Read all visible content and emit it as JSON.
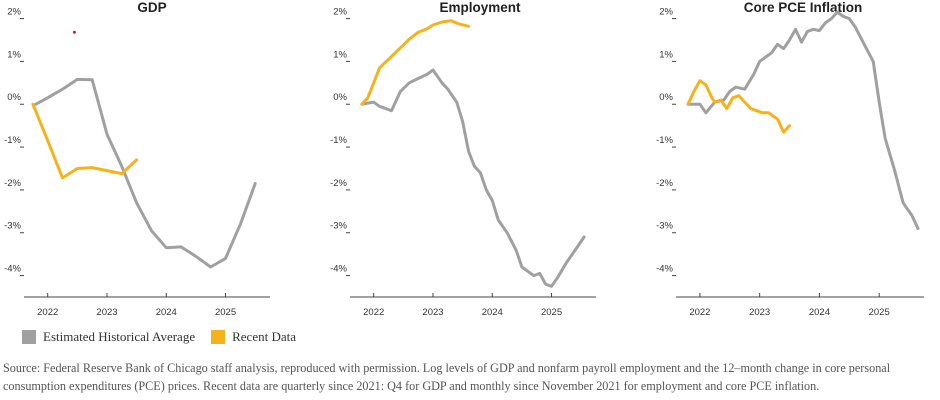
{
  "chart_data": [
    {
      "type": "line",
      "title": "GDP",
      "x_ticks": [
        "2022",
        "2023",
        "2024",
        "2025"
      ],
      "y_tick_labels": [
        "2%",
        "1%",
        "0%",
        "-1%",
        "-2%",
        "-3%",
        "-4%"
      ],
      "ylim": [
        -4.5,
        2.2
      ],
      "xlim": [
        2021.6,
        2025.75
      ],
      "series": [
        {
          "name": "Estimated Historical Average",
          "color": "#a0a0a0",
          "x": [
            2021.8,
            2022.0,
            2022.25,
            2022.5,
            2022.75,
            2023.0,
            2023.25,
            2023.5,
            2023.75,
            2024.0,
            2024.25,
            2024.5,
            2024.75,
            2025.0,
            2025.25,
            2025.5
          ],
          "y": [
            0.0,
            0.15,
            0.35,
            0.58,
            0.57,
            -0.7,
            -1.45,
            -2.3,
            -2.95,
            -3.35,
            -3.33,
            -3.55,
            -3.8,
            -3.6,
            -2.8,
            -1.85
          ]
        },
        {
          "name": "Recent Data",
          "color": "#f6b21b",
          "x": [
            2021.75,
            2022.0,
            2022.25,
            2022.5,
            2022.75,
            2023.0,
            2023.25,
            2023.5
          ],
          "y": [
            0.0,
            -0.85,
            -1.72,
            -1.5,
            -1.48,
            -1.55,
            -1.62,
            -1.3
          ]
        }
      ]
    },
    {
      "type": "line",
      "title": "Employment",
      "x_ticks": [
        "2022",
        "2023",
        "2024",
        "2025"
      ],
      "y_tick_labels": [
        "2%",
        "1%",
        "0%",
        "-1%",
        "-2%",
        "-3%",
        "-4%"
      ],
      "ylim": [
        -4.5,
        2.2
      ],
      "xlim": [
        2021.6,
        2025.75
      ],
      "series": [
        {
          "name": "Estimated Historical Average",
          "color": "#a0a0a0",
          "x": [
            2021.8,
            2022.0,
            2022.1,
            2022.3,
            2022.45,
            2022.6,
            2022.75,
            2022.9,
            2023.0,
            2023.15,
            2023.25,
            2023.4,
            2023.5,
            2023.6,
            2023.7,
            2023.8,
            2023.9,
            2024.0,
            2024.1,
            2024.25,
            2024.4,
            2024.5,
            2024.6,
            2024.7,
            2024.8,
            2024.9,
            2025.0,
            2025.1,
            2025.25,
            2025.4,
            2025.55
          ],
          "y": [
            0.0,
            0.05,
            -0.05,
            -0.15,
            0.3,
            0.5,
            0.6,
            0.7,
            0.8,
            0.5,
            0.35,
            0.05,
            -0.4,
            -1.1,
            -1.45,
            -1.6,
            -2.0,
            -2.25,
            -2.7,
            -3.0,
            -3.4,
            -3.8,
            -3.9,
            -4.0,
            -3.95,
            -4.2,
            -4.25,
            -4.05,
            -3.7,
            -3.4,
            -3.1
          ]
        },
        {
          "name": "Recent Data",
          "color": "#f6b21b",
          "x": [
            2021.8,
            2021.9,
            2022.0,
            2022.1,
            2022.25,
            2022.4,
            2022.5,
            2022.6,
            2022.75,
            2022.9,
            2023.0,
            2023.15,
            2023.3,
            2023.45,
            2023.6
          ],
          "y": [
            0.0,
            0.15,
            0.5,
            0.85,
            1.05,
            1.25,
            1.38,
            1.52,
            1.68,
            1.76,
            1.85,
            1.92,
            1.95,
            1.87,
            1.82
          ]
        }
      ]
    },
    {
      "type": "line",
      "title": "Core PCE Inflation",
      "x_ticks": [
        "2022",
        "2023",
        "2024",
        "2025"
      ],
      "y_tick_labels": [
        "2%",
        "1%",
        "0%",
        "-1%",
        "-2%",
        "-3%",
        "-4%"
      ],
      "ylim": [
        -4.5,
        2.2
      ],
      "xlim": [
        2021.6,
        2025.75
      ],
      "series": [
        {
          "name": "Estimated Historical Average",
          "color": "#a0a0a0",
          "x": [
            2021.8,
            2022.0,
            2022.1,
            2022.25,
            2022.4,
            2022.5,
            2022.6,
            2022.75,
            2022.9,
            2023.0,
            2023.1,
            2023.2,
            2023.3,
            2023.4,
            2023.5,
            2023.6,
            2023.7,
            2023.8,
            2023.9,
            2024.0,
            2024.1,
            2024.2,
            2024.3,
            2024.4,
            2024.5,
            2024.6,
            2024.75,
            2024.9,
            2025.0,
            2025.1,
            2025.25,
            2025.4,
            2025.55,
            2025.65
          ],
          "y": [
            0.0,
            0.0,
            -0.2,
            0.05,
            0.1,
            0.3,
            0.4,
            0.35,
            0.7,
            1.0,
            1.1,
            1.2,
            1.4,
            1.3,
            1.5,
            1.75,
            1.45,
            1.7,
            1.75,
            1.72,
            1.9,
            2.0,
            2.15,
            2.05,
            2.0,
            1.8,
            1.4,
            1.0,
            0.05,
            -0.8,
            -1.5,
            -2.3,
            -2.6,
            -2.9
          ]
        },
        {
          "name": "Recent Data",
          "color": "#f6b21b",
          "x": [
            2021.8,
            2021.9,
            2022.0,
            2022.1,
            2022.2,
            2022.25,
            2022.35,
            2022.45,
            2022.55,
            2022.65,
            2022.75,
            2022.85,
            2022.95,
            2023.05,
            2023.15,
            2023.3,
            2023.4,
            2023.5
          ],
          "y": [
            0.0,
            0.3,
            0.55,
            0.45,
            0.15,
            0.05,
            0.1,
            -0.1,
            0.15,
            0.2,
            0.05,
            -0.1,
            -0.15,
            -0.2,
            -0.2,
            -0.35,
            -0.65,
            -0.5
          ]
        }
      ]
    }
  ],
  "legend": {
    "items": [
      {
        "label": "Estimated Historical Average",
        "color": "#a0a0a0"
      },
      {
        "label": "Recent Data",
        "color": "#f6b21b"
      }
    ]
  },
  "source_note": "Source: Federal Reserve Bank of Chicago staff analysis, reproduced with permission. Log levels of GDP and nonfarm payroll employment and the 12–month change in core personal consumption expenditures (PCE) prices. Recent data are quarterly since 2021: Q4 for GDP and monthly since November 2021 for employment and core PCE inflation.",
  "annotation_marker": {
    "color": "#cc2222",
    "x": 2022.45,
    "y": 1.68
  }
}
